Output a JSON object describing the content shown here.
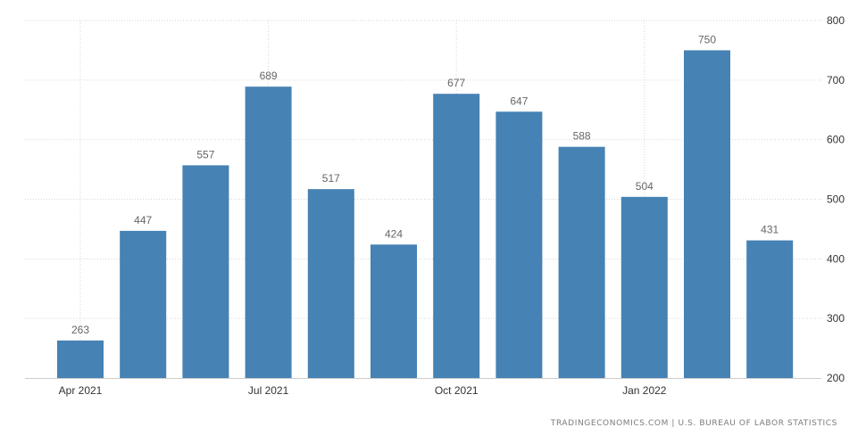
{
  "chart_data": {
    "type": "bar",
    "categories": [
      "Apr 2021",
      "May 2021",
      "Jun 2021",
      "Jul 2021",
      "Aug 2021",
      "Sep 2021",
      "Oct 2021",
      "Nov 2021",
      "Dec 2021",
      "Jan 2022",
      "Feb 2022",
      "Mar 2022"
    ],
    "values": [
      263,
      447,
      557,
      689,
      517,
      424,
      677,
      647,
      588,
      504,
      750,
      431
    ],
    "x_tick_labels": [
      {
        "label": "Apr 2021",
        "category": "Apr 2021"
      },
      {
        "label": "Jul 2021",
        "category": "Jul 2021"
      },
      {
        "label": "Oct 2021",
        "category": "Oct 2021"
      },
      {
        "label": "Jan 2022",
        "category": "Jan 2022"
      }
    ],
    "y_ticks": [
      200,
      300,
      400,
      500,
      600,
      700,
      800
    ],
    "ylim": [
      200,
      800
    ],
    "y_axis_side": "right",
    "grid": true,
    "bar_color": "#4682b4",
    "title": "",
    "xlabel": "",
    "ylabel": ""
  },
  "source_text": "TRADINGECONOMICS.COM | U.S. BUREAU OF LABOR STATISTICS"
}
